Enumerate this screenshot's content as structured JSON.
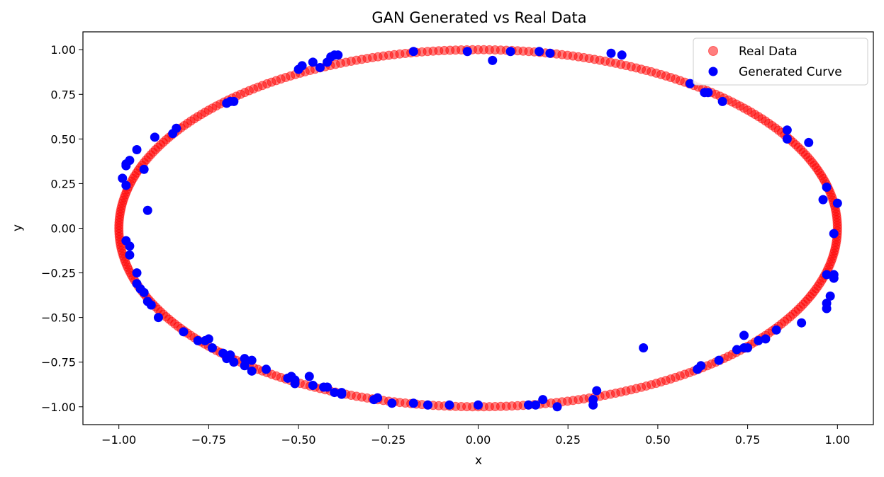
{
  "chart_data": {
    "type": "scatter",
    "title": "GAN Generated vs Real Data",
    "xlabel": "x",
    "ylabel": "y",
    "xlim": [
      -1.1,
      1.1
    ],
    "ylim": [
      -1.1,
      1.1
    ],
    "xticks": [
      -1.0,
      -0.75,
      -0.5,
      -0.25,
      0.0,
      0.25,
      0.5,
      0.75,
      1.0
    ],
    "yticks": [
      -1.0,
      -0.75,
      -0.5,
      -0.25,
      0.0,
      0.25,
      0.5,
      0.75,
      1.0
    ],
    "xtick_labels": [
      "−1.00",
      "−0.75",
      "−0.50",
      "−0.25",
      "0.00",
      "0.25",
      "0.50",
      "0.75",
      "1.00"
    ],
    "ytick_labels": [
      "−1.00",
      "−0.75",
      "−0.50",
      "−0.25",
      "0.00",
      "0.25",
      "0.50",
      "0.75",
      "1.00"
    ],
    "grid": false,
    "legend_position": "top-right",
    "series": [
      {
        "name": "Real Data",
        "color": "#ff0000",
        "opacity": 0.5,
        "shape": "unit-circle",
        "point_count": 400
      },
      {
        "name": "Generated Curve",
        "color": "#0000ff",
        "opacity": 1.0,
        "points": [
          [
            -0.99,
            0.28
          ],
          [
            -0.98,
            0.24
          ],
          [
            -0.98,
            0.36
          ],
          [
            -0.97,
            0.38
          ],
          [
            -0.98,
            0.35
          ],
          [
            -0.95,
            0.44
          ],
          [
            -0.93,
            0.33
          ],
          [
            -0.9,
            0.51
          ],
          [
            -0.85,
            0.53
          ],
          [
            -0.84,
            0.56
          ],
          [
            -0.92,
            0.1
          ],
          [
            -0.7,
            0.7
          ],
          [
            -0.69,
            0.71
          ],
          [
            -0.68,
            0.71
          ],
          [
            -0.5,
            0.89
          ],
          [
            -0.49,
            0.91
          ],
          [
            -0.46,
            0.93
          ],
          [
            -0.44,
            0.9
          ],
          [
            -0.42,
            0.93
          ],
          [
            -0.41,
            0.96
          ],
          [
            -0.4,
            0.97
          ],
          [
            -0.39,
            0.97
          ],
          [
            -0.18,
            0.99
          ],
          [
            -0.03,
            0.99
          ],
          [
            0.04,
            0.94
          ],
          [
            0.09,
            0.99
          ],
          [
            0.17,
            0.99
          ],
          [
            0.2,
            0.98
          ],
          [
            0.37,
            0.98
          ],
          [
            0.4,
            0.97
          ],
          [
            0.59,
            0.81
          ],
          [
            0.63,
            0.76
          ],
          [
            0.64,
            0.76
          ],
          [
            0.68,
            0.71
          ],
          [
            0.86,
            0.55
          ],
          [
            0.86,
            0.5
          ],
          [
            0.92,
            0.48
          ],
          [
            0.97,
            0.23
          ],
          [
            0.96,
            0.16
          ],
          [
            1.0,
            0.14
          ],
          [
            0.99,
            -0.03
          ],
          [
            -0.98,
            -0.07
          ],
          [
            -0.97,
            -0.1
          ],
          [
            -0.97,
            -0.15
          ],
          [
            -0.95,
            -0.25
          ],
          [
            -0.95,
            -0.31
          ],
          [
            -0.94,
            -0.34
          ],
          [
            -0.93,
            -0.36
          ],
          [
            -0.92,
            -0.41
          ],
          [
            -0.91,
            -0.43
          ],
          [
            -0.89,
            -0.5
          ],
          [
            -0.82,
            -0.58
          ],
          [
            -0.78,
            -0.63
          ],
          [
            -0.76,
            -0.63
          ],
          [
            -0.75,
            -0.62
          ],
          [
            -0.74,
            -0.67
          ],
          [
            -0.71,
            -0.7
          ],
          [
            -0.7,
            -0.73
          ],
          [
            -0.69,
            -0.71
          ],
          [
            -0.68,
            -0.75
          ],
          [
            -0.65,
            -0.73
          ],
          [
            -0.65,
            -0.77
          ],
          [
            -0.63,
            -0.74
          ],
          [
            -0.63,
            -0.8
          ],
          [
            -0.59,
            -0.79
          ],
          [
            -0.53,
            -0.84
          ],
          [
            -0.52,
            -0.83
          ],
          [
            -0.51,
            -0.85
          ],
          [
            -0.51,
            -0.87
          ],
          [
            -0.47,
            -0.83
          ],
          [
            -0.46,
            -0.88
          ],
          [
            -0.43,
            -0.89
          ],
          [
            -0.42,
            -0.89
          ],
          [
            -0.4,
            -0.92
          ],
          [
            -0.38,
            -0.93
          ],
          [
            -0.38,
            -0.92
          ],
          [
            -0.29,
            -0.96
          ],
          [
            -0.28,
            -0.95
          ],
          [
            -0.24,
            -0.98
          ],
          [
            -0.18,
            -0.98
          ],
          [
            -0.14,
            -0.99
          ],
          [
            -0.08,
            -0.99
          ],
          [
            0.0,
            -0.99
          ],
          [
            0.14,
            -0.99
          ],
          [
            0.16,
            -0.99
          ],
          [
            0.18,
            -0.96
          ],
          [
            0.22,
            -1.0
          ],
          [
            0.32,
            -0.99
          ],
          [
            0.32,
            -0.96
          ],
          [
            0.33,
            -0.91
          ],
          [
            0.46,
            -0.67
          ],
          [
            0.61,
            -0.79
          ],
          [
            0.62,
            -0.77
          ],
          [
            0.67,
            -0.74
          ],
          [
            0.72,
            -0.68
          ],
          [
            0.74,
            -0.67
          ],
          [
            0.74,
            -0.6
          ],
          [
            0.75,
            -0.67
          ],
          [
            0.78,
            -0.63
          ],
          [
            0.8,
            -0.62
          ],
          [
            0.83,
            -0.57
          ],
          [
            0.9,
            -0.53
          ],
          [
            0.97,
            -0.26
          ],
          [
            0.99,
            -0.26
          ],
          [
            0.99,
            -0.28
          ],
          [
            0.98,
            -0.38
          ],
          [
            0.97,
            -0.42
          ],
          [
            0.97,
            -0.45
          ]
        ]
      }
    ]
  }
}
